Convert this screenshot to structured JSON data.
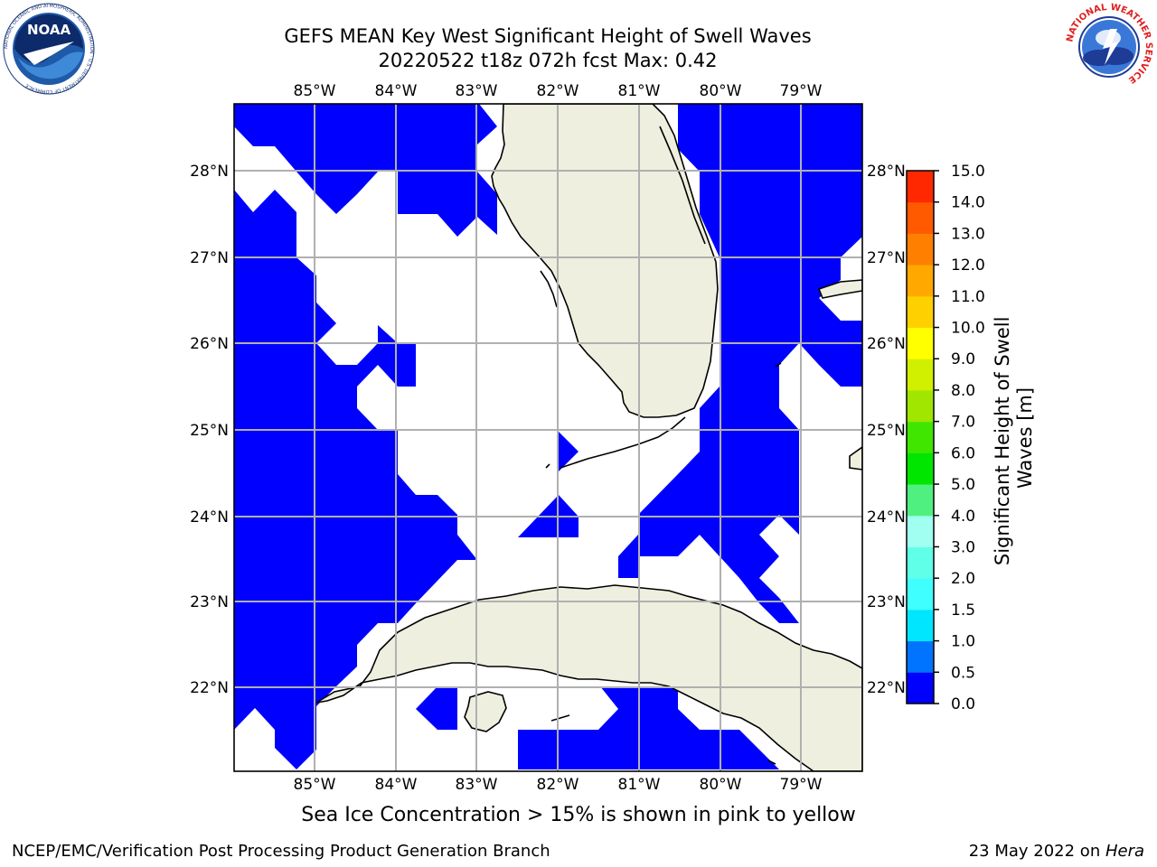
{
  "header": {
    "title_line1": "GEFS MEAN Key West Significant Height of Swell Waves",
    "title_line2": "20220522 t18z 072h fcst   Max: 0.42"
  },
  "logos": {
    "noaa_text": "NOAA",
    "noaa_ring_text": "NATIONAL OCEANIC AND ATMOSPHERIC ADMINISTRATION · U.S. DEPARTMENT OF COMMERCE",
    "nws_ring_text": "NATIONAL WEATHER SERVICE"
  },
  "map": {
    "lon_labels": [
      "85°W",
      "84°W",
      "83°W",
      "82°W",
      "81°W",
      "80°W",
      "79°W"
    ],
    "lat_labels": [
      "28°N",
      "27°N",
      "26°N",
      "25°N",
      "24°N",
      "23°N",
      "22°N"
    ],
    "colors": {
      "ocean_swell": "#0000ff",
      "land": "#efefdf",
      "grid": "#b0b0b0",
      "coast": "#000000"
    }
  },
  "colorbar": {
    "label": "Significant Height of Swell Waves [m]",
    "ticks": [
      "0.0",
      "0.5",
      "1.0",
      "1.5",
      "2.0",
      "3.0",
      "4.0",
      "5.0",
      "6.0",
      "7.0",
      "8.0",
      "9.0",
      "10.0",
      "11.0",
      "12.0",
      "13.0",
      "14.0",
      "15.0"
    ],
    "colors": [
      "#0000ff",
      "#0073ff",
      "#00e6ff",
      "#40ffff",
      "#60ffe8",
      "#a0fff0",
      "#50f080",
      "#00e600",
      "#40e600",
      "#a0e600",
      "#d0f000",
      "#ffff00",
      "#ffd000",
      "#ffa800",
      "#ff8000",
      "#ff5a00",
      "#ff2800",
      "#ff0000"
    ]
  },
  "caption": "Sea Ice Concentration > 15% is shown in pink to yellow",
  "footer": {
    "left": "NCEP/EMC/Verification Post Processing Product Generation Branch",
    "right_date": "23 May 2022 on ",
    "right_host": "Hera"
  }
}
